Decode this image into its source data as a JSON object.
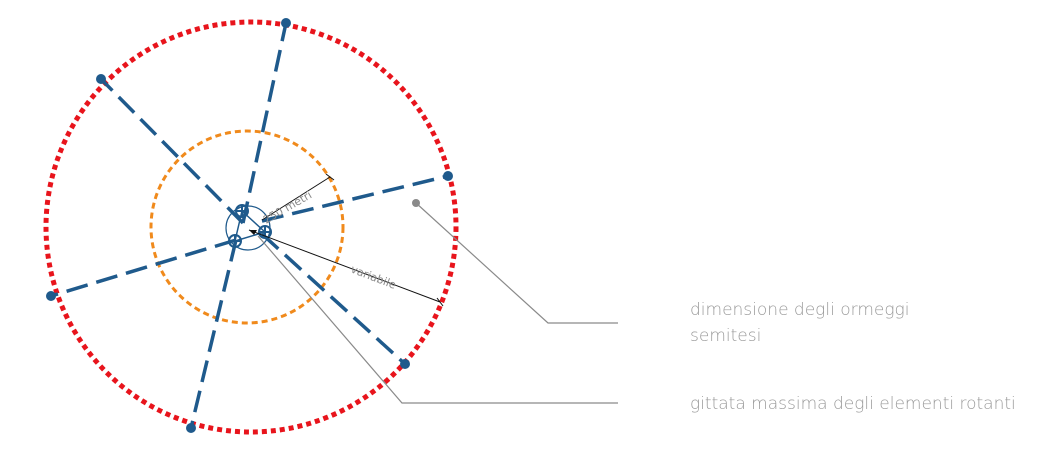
{
  "labels": {
    "radius_label": "250 metri",
    "variable_label": "variabile"
  },
  "legend": {
    "mooring_line1": "dimensione degli ormeggi",
    "mooring_line2": "semitesi",
    "rotating": "gittata massima degli elementi rotanti"
  },
  "colors": {
    "mooring_circle": "#e8141c",
    "safety_circle": "#f08a1c",
    "mooring_lines": "#1f5a8c",
    "anchor_points": "#1f5a8c",
    "leader_lines": "#8a8a8a",
    "legend_text": "#9a9a9a",
    "dimension_lines": "#111111"
  },
  "icons": {
    "anchor_point": "filled-circle-dot",
    "turbine": "crossed-circle-icon",
    "leader_end": "gray-dot"
  }
}
